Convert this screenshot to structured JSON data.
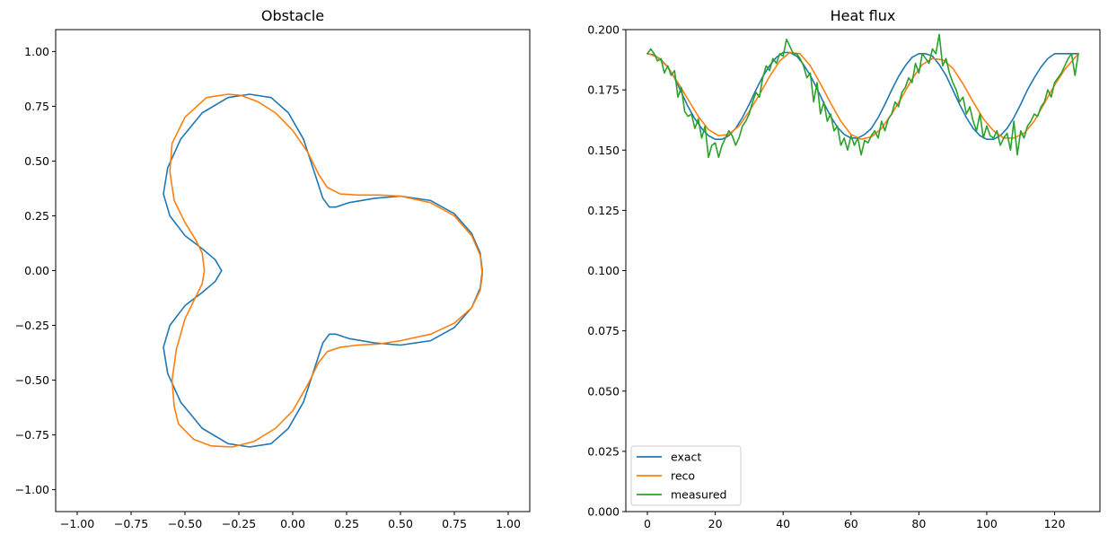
{
  "chart_data": [
    {
      "type": "line",
      "title": "Obstacle",
      "xlabel": "",
      "ylabel": "",
      "xlim": [
        -1.1,
        1.1
      ],
      "ylim": [
        -1.1,
        1.1
      ],
      "xticks": [
        -1.0,
        -0.75,
        -0.5,
        -0.25,
        0.0,
        0.25,
        0.5,
        0.75,
        1.0
      ],
      "yticks": [
        -1.0,
        -0.75,
        -0.5,
        -0.25,
        0.0,
        0.25,
        0.5,
        0.75,
        1.0
      ],
      "xtick_labels": [
        "−1.00",
        "−0.75",
        "−0.50",
        "−0.25",
        "0.00",
        "0.25",
        "0.50",
        "0.75",
        "1.00"
      ],
      "ytick_labels": [
        "−1.00",
        "−0.75",
        "−0.50",
        "−0.25",
        "0.00",
        "0.25",
        "0.50",
        "0.75",
        "1.00"
      ],
      "grid": false,
      "series": [
        {
          "color": "#1f77b4",
          "x": [
            0.88,
            0.87,
            0.83,
            0.75,
            0.64,
            0.5,
            0.38,
            0.26,
            0.2,
            0.17,
            0.14,
            0.1,
            0.05,
            -0.02,
            -0.1,
            -0.2,
            -0.3,
            -0.42,
            -0.52,
            -0.58,
            -0.6,
            -0.57,
            -0.5,
            -0.42,
            -0.36,
            -0.33,
            -0.36,
            -0.42,
            -0.5,
            -0.57,
            -0.6,
            -0.58,
            -0.52,
            -0.42,
            -0.3,
            -0.2,
            -0.1,
            -0.02,
            0.05,
            0.1,
            0.14,
            0.17,
            0.2,
            0.26,
            0.38,
            0.5,
            0.64,
            0.75,
            0.83,
            0.87,
            0.88
          ],
          "y": [
            0.0,
            0.08,
            0.17,
            0.26,
            0.32,
            0.34,
            0.33,
            0.31,
            0.29,
            0.29,
            0.33,
            0.45,
            0.6,
            0.72,
            0.79,
            0.805,
            0.79,
            0.72,
            0.6,
            0.47,
            0.35,
            0.25,
            0.16,
            0.1,
            0.05,
            0.0,
            -0.05,
            -0.1,
            -0.16,
            -0.25,
            -0.35,
            -0.47,
            -0.6,
            -0.72,
            -0.79,
            -0.805,
            -0.79,
            -0.72,
            -0.6,
            -0.45,
            -0.33,
            -0.29,
            -0.29,
            -0.31,
            -0.33,
            -0.34,
            -0.32,
            -0.26,
            -0.17,
            -0.08,
            0.0
          ]
        },
        {
          "color": "#ff7f0e",
          "x": [
            0.88,
            0.87,
            0.83,
            0.75,
            0.64,
            0.5,
            0.4,
            0.3,
            0.22,
            0.16,
            0.12,
            0.07,
            0.0,
            -0.08,
            -0.16,
            -0.24,
            -0.3,
            -0.4,
            -0.5,
            -0.56,
            -0.57,
            -0.55,
            -0.5,
            -0.45,
            -0.42,
            -0.41,
            -0.42,
            -0.45,
            -0.5,
            -0.54,
            -0.56,
            -0.55,
            -0.53,
            -0.46,
            -0.38,
            -0.28,
            -0.18,
            -0.08,
            0.0,
            0.07,
            0.12,
            0.16,
            0.22,
            0.3,
            0.4,
            0.5,
            0.64,
            0.75,
            0.83,
            0.87,
            0.88
          ],
          "y": [
            -0.02,
            0.07,
            0.16,
            0.25,
            0.31,
            0.34,
            0.345,
            0.345,
            0.35,
            0.38,
            0.44,
            0.54,
            0.64,
            0.72,
            0.77,
            0.8,
            0.805,
            0.79,
            0.7,
            0.58,
            0.45,
            0.32,
            0.22,
            0.14,
            0.08,
            0.0,
            -0.06,
            -0.12,
            -0.22,
            -0.36,
            -0.5,
            -0.62,
            -0.7,
            -0.77,
            -0.8,
            -0.805,
            -0.78,
            -0.72,
            -0.64,
            -0.52,
            -0.42,
            -0.37,
            -0.35,
            -0.34,
            -0.335,
            -0.32,
            -0.29,
            -0.24,
            -0.17,
            -0.09,
            -0.02
          ]
        }
      ]
    },
    {
      "type": "line",
      "title": "Heat flux",
      "xlabel": "",
      "ylabel": "",
      "xlim": [
        -6.35,
        133.35
      ],
      "ylim": [
        0.0,
        0.2
      ],
      "xticks": [
        0,
        20,
        40,
        60,
        80,
        100,
        120
      ],
      "yticks": [
        0.0,
        0.025,
        0.05,
        0.075,
        0.1,
        0.125,
        0.15,
        0.175,
        0.2
      ],
      "xtick_labels": [
        "0",
        "20",
        "40",
        "60",
        "80",
        "100",
        "120"
      ],
      "ytick_labels": [
        "0.000",
        "0.025",
        "0.050",
        "0.075",
        "0.100",
        "0.125",
        "0.150",
        "0.175",
        "0.200"
      ],
      "grid": false,
      "legend": {
        "location": "lower-left"
      },
      "series": [
        {
          "name": "exact",
          "color": "#1f77b4",
          "x": [
            0,
            2,
            4,
            6,
            8,
            10,
            12,
            14,
            16,
            18,
            20,
            22,
            24,
            26,
            28,
            30,
            32,
            34,
            36,
            38,
            40,
            42,
            44,
            46,
            48,
            50,
            52,
            54,
            56,
            58,
            60,
            62,
            64,
            66,
            68,
            70,
            72,
            74,
            76,
            78,
            80,
            82,
            84,
            86,
            88,
            90,
            92,
            94,
            96,
            98,
            100,
            102,
            104,
            106,
            108,
            110,
            112,
            114,
            116,
            118,
            120,
            122,
            124,
            126,
            127
          ],
          "y": [
            0.19,
            0.1895,
            0.1875,
            0.1845,
            0.18,
            0.174,
            0.168,
            0.163,
            0.159,
            0.156,
            0.1545,
            0.1545,
            0.156,
            0.159,
            0.1635,
            0.169,
            0.175,
            0.1805,
            0.185,
            0.1885,
            0.1905,
            0.1905,
            0.189,
            0.1855,
            0.181,
            0.1755,
            0.1695,
            0.164,
            0.1595,
            0.1565,
            0.155,
            0.155,
            0.1565,
            0.159,
            0.1635,
            0.169,
            0.175,
            0.1805,
            0.185,
            0.1885,
            0.19,
            0.19,
            0.189,
            0.1855,
            0.181,
            0.175,
            0.169,
            0.1635,
            0.159,
            0.156,
            0.1545,
            0.1545,
            0.156,
            0.159,
            0.1635,
            0.169,
            0.175,
            0.18,
            0.1845,
            0.188,
            0.19,
            0.19,
            0.19,
            0.19,
            0.19
          ]
        },
        {
          "name": "reco",
          "color": "#ff7f0e",
          "x": [
            0,
            3,
            6,
            9,
            12,
            15,
            18,
            21,
            24,
            27,
            30,
            33,
            36,
            39,
            42,
            45,
            48,
            51,
            54,
            57,
            60,
            63,
            66,
            69,
            72,
            75,
            78,
            81,
            84,
            87,
            90,
            93,
            96,
            99,
            102,
            105,
            108,
            111,
            114,
            117,
            120,
            123,
            127
          ],
          "y": [
            0.1902,
            0.1885,
            0.1845,
            0.178,
            0.171,
            0.164,
            0.1585,
            0.156,
            0.1565,
            0.16,
            0.166,
            0.173,
            0.1805,
            0.187,
            0.1905,
            0.19,
            0.185,
            0.1775,
            0.1695,
            0.162,
            0.1565,
            0.1545,
            0.1555,
            0.159,
            0.165,
            0.172,
            0.1795,
            0.1855,
            0.188,
            0.1875,
            0.184,
            0.1775,
            0.17,
            0.163,
            0.158,
            0.155,
            0.155,
            0.157,
            0.162,
            0.1695,
            0.177,
            0.1835,
            0.19
          ]
        },
        {
          "name": "measured",
          "color": "#2ca02c",
          "x": [
            0,
            1,
            2,
            3,
            4,
            5,
            6,
            7,
            8,
            9,
            10,
            11,
            12,
            13,
            14,
            15,
            16,
            17,
            18,
            19,
            20,
            21,
            22,
            23,
            24,
            25,
            26,
            27,
            28,
            29,
            30,
            31,
            32,
            33,
            34,
            35,
            36,
            37,
            38,
            39,
            40,
            41,
            42,
            43,
            44,
            45,
            46,
            47,
            48,
            49,
            50,
            51,
            52,
            53,
            54,
            55,
            56,
            57,
            58,
            59,
            60,
            61,
            62,
            63,
            64,
            65,
            66,
            67,
            68,
            69,
            70,
            71,
            72,
            73,
            74,
            75,
            76,
            77,
            78,
            79,
            80,
            81,
            82,
            83,
            84,
            85,
            86,
            87,
            88,
            89,
            90,
            91,
            92,
            93,
            94,
            95,
            96,
            97,
            98,
            99,
            100,
            101,
            102,
            103,
            104,
            105,
            106,
            107,
            108,
            109,
            110,
            111,
            112,
            113,
            114,
            115,
            116,
            117,
            118,
            119,
            120,
            121,
            122,
            123,
            124,
            125,
            126,
            127
          ],
          "y": [
            0.19,
            0.192,
            0.19,
            0.187,
            0.188,
            0.182,
            0.185,
            0.181,
            0.183,
            0.172,
            0.176,
            0.166,
            0.164,
            0.165,
            0.159,
            0.163,
            0.155,
            0.16,
            0.147,
            0.152,
            0.153,
            0.147,
            0.152,
            0.155,
            0.158,
            0.156,
            0.152,
            0.155,
            0.16,
            0.162,
            0.165,
            0.17,
            0.174,
            0.172,
            0.18,
            0.185,
            0.183,
            0.188,
            0.186,
            0.19,
            0.189,
            0.196,
            0.193,
            0.19,
            0.19,
            0.188,
            0.185,
            0.18,
            0.182,
            0.17,
            0.178,
            0.165,
            0.17,
            0.162,
            0.165,
            0.158,
            0.16,
            0.152,
            0.155,
            0.15,
            0.156,
            0.152,
            0.155,
            0.148,
            0.154,
            0.153,
            0.156,
            0.158,
            0.155,
            0.162,
            0.158,
            0.163,
            0.165,
            0.17,
            0.168,
            0.174,
            0.176,
            0.18,
            0.178,
            0.186,
            0.182,
            0.19,
            0.188,
            0.186,
            0.192,
            0.19,
            0.198,
            0.185,
            0.188,
            0.182,
            0.178,
            0.175,
            0.17,
            0.172,
            0.165,
            0.168,
            0.162,
            0.158,
            0.165,
            0.155,
            0.16,
            0.156,
            0.155,
            0.158,
            0.152,
            0.155,
            0.157,
            0.15,
            0.162,
            0.148,
            0.158,
            0.155,
            0.16,
            0.162,
            0.165,
            0.164,
            0.168,
            0.17,
            0.175,
            0.172,
            0.178,
            0.18,
            0.182,
            0.185,
            0.188,
            0.19,
            0.181,
            0.19
          ]
        }
      ]
    }
  ]
}
